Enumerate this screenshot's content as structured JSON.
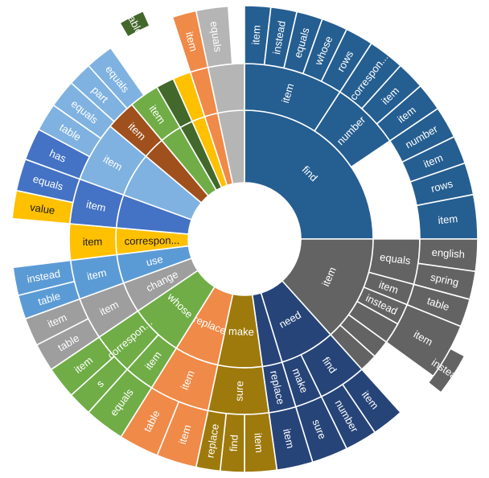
{
  "chart_data": {
    "type": "sunburst",
    "start_angle_deg": 0,
    "direction": "clockwise",
    "colors": {
      "blue": "#255E91",
      "gray": "#636363",
      "navy": "#264478",
      "olive": "#9E7A0C",
      "orange": "#F08A48",
      "green": "#70AD47",
      "lightgray": "#9E9E9E",
      "midblue": "#5B9BD5",
      "gold": "#FFC000",
      "royal": "#4472C4",
      "lightblue": "#7FB2E0",
      "rust": "#A0501C",
      "darkgreen": "#43682B",
      "silver": "#B5B5B5"
    },
    "segments": [
      {
        "ring": 1,
        "start": 0,
        "end": 90,
        "label": "find",
        "color": "blue"
      },
      {
        "ring": 2,
        "start": 0,
        "end": 33,
        "label": "item",
        "color": "blue"
      },
      {
        "ring": 2,
        "start": 33,
        "end": 56,
        "label": "number",
        "color": "blue"
      },
      {
        "ring": 3,
        "start": 0,
        "end": 6.5,
        "label": "item",
        "color": "blue"
      },
      {
        "ring": 3,
        "start": 6.5,
        "end": 13,
        "label": "instead",
        "color": "blue"
      },
      {
        "ring": 3,
        "start": 13,
        "end": 19.5,
        "label": "equals",
        "color": "blue"
      },
      {
        "ring": 3,
        "start": 19.5,
        "end": 26,
        "label": "whose",
        "color": "blue"
      },
      {
        "ring": 3,
        "start": 26,
        "end": 33,
        "label": "rows",
        "color": "blue"
      },
      {
        "ring": 3,
        "start": 33,
        "end": 42,
        "label": "correspon...",
        "color": "blue"
      },
      {
        "ring": 3,
        "start": 42,
        "end": 49,
        "label": "item",
        "color": "blue"
      },
      {
        "ring": 3,
        "start": 49,
        "end": 56,
        "label": "item",
        "color": "blue"
      },
      {
        "ring": 3,
        "start": 56,
        "end": 64,
        "label": "number",
        "color": "blue"
      },
      {
        "ring": 3,
        "start": 64,
        "end": 71,
        "label": "item",
        "color": "blue"
      },
      {
        "ring": 3,
        "start": 71,
        "end": 79,
        "label": "rows",
        "color": "blue"
      },
      {
        "ring": 3,
        "start": 79,
        "end": 90,
        "label": "item",
        "color": "blue"
      },
      {
        "ring": 1,
        "start": 90,
        "end": 138,
        "label": "item",
        "color": "gray"
      },
      {
        "ring": 2,
        "start": 90,
        "end": 105,
        "label": "equals",
        "color": "gray"
      },
      {
        "ring": 2,
        "start": 105,
        "end": 112,
        "label": "item",
        "color": "gray"
      },
      {
        "ring": 2,
        "start": 112,
        "end": 119,
        "label": "instead",
        "color": "gray"
      },
      {
        "ring": 3,
        "start": 90,
        "end": 98,
        "label": "english",
        "color": "gray"
      },
      {
        "ring": 3,
        "start": 98,
        "end": 105,
        "label": "spring",
        "color": "gray"
      },
      {
        "ring": 3,
        "start": 105,
        "end": 112,
        "label": "table",
        "color": "gray"
      },
      {
        "ring": 3,
        "start": 112,
        "end": 126,
        "label": "item",
        "color": "gray"
      },
      {
        "ring": 2,
        "start": 119,
        "end": 126,
        "label": "",
        "color": "gray"
      },
      {
        "ring": 2,
        "start": 126,
        "end": 132,
        "label": "",
        "color": "gray"
      },
      {
        "ring": 2,
        "start": 132,
        "end": 138,
        "label": "",
        "color": "gray"
      },
      {
        "ring": 4,
        "start": 118,
        "end": 128,
        "label": "instead",
        "color": "gray"
      },
      {
        "ring": 1,
        "start": 138,
        "end": 163,
        "label": "need",
        "color": "navy"
      },
      {
        "ring": 2,
        "start": 138,
        "end": 154,
        "label": "find",
        "color": "navy"
      },
      {
        "ring": 2,
        "start": 154,
        "end": 163,
        "label": "make",
        "color": "navy"
      },
      {
        "ring": 3,
        "start": 138,
        "end": 146,
        "label": "item",
        "color": "navy"
      },
      {
        "ring": 3,
        "start": 146,
        "end": 154,
        "label": "number",
        "color": "navy"
      },
      {
        "ring": 3,
        "start": 154,
        "end": 163,
        "label": "sure",
        "color": "navy"
      },
      {
        "ring": 3,
        "start": 163,
        "end": 172,
        "label": "item",
        "color": "navy"
      },
      {
        "ring": 2,
        "start": 163,
        "end": 172,
        "label": "replace",
        "color": "navy"
      },
      {
        "ring": 1,
        "start": 163,
        "end": 172,
        "label": "",
        "color": "navy"
      },
      {
        "ring": 1,
        "start": 172,
        "end": 192,
        "label": "make",
        "color": "olive"
      },
      {
        "ring": 2,
        "start": 172,
        "end": 192,
        "label": "sure",
        "color": "olive"
      },
      {
        "ring": 3,
        "start": 172,
        "end": 180,
        "label": "item",
        "color": "olive"
      },
      {
        "ring": 3,
        "start": 180,
        "end": 186,
        "label": "find",
        "color": "olive"
      },
      {
        "ring": 3,
        "start": 186,
        "end": 192,
        "label": "replace",
        "color": "olive"
      },
      {
        "ring": 1,
        "start": 192,
        "end": 212,
        "label": "replace",
        "color": "orange"
      },
      {
        "ring": 2,
        "start": 192,
        "end": 212,
        "label": "item",
        "color": "orange"
      },
      {
        "ring": 3,
        "start": 192,
        "end": 202,
        "label": "item",
        "color": "orange"
      },
      {
        "ring": 3,
        "start": 202,
        "end": 212,
        "label": "table",
        "color": "orange"
      },
      {
        "ring": 1,
        "start": 212,
        "end": 236,
        "label": "whose",
        "color": "green"
      },
      {
        "ring": 2,
        "start": 212,
        "end": 222,
        "label": "item",
        "color": "green"
      },
      {
        "ring": 2,
        "start": 222,
        "end": 236,
        "label": "correspon...",
        "color": "green"
      },
      {
        "ring": 3,
        "start": 212,
        "end": 222,
        "label": "equals",
        "color": "green"
      },
      {
        "ring": 3,
        "start": 222,
        "end": 228,
        "label": "s",
        "color": "green"
      },
      {
        "ring": 3,
        "start": 228,
        "end": 236,
        "label": "item",
        "color": "green"
      },
      {
        "ring": 1,
        "start": 236,
        "end": 250,
        "label": "change",
        "color": "lightgray"
      },
      {
        "ring": 2,
        "start": 236,
        "end": 250,
        "label": "item",
        "color": "lightgray"
      },
      {
        "ring": 3,
        "start": 236,
        "end": 243,
        "label": "table",
        "color": "lightgray"
      },
      {
        "ring": 3,
        "start": 243,
        "end": 250,
        "label": "item",
        "color": "lightgray"
      },
      {
        "ring": 1,
        "start": 250,
        "end": 263,
        "label": "use",
        "color": "midblue"
      },
      {
        "ring": 2,
        "start": 250,
        "end": 263,
        "label": "item",
        "color": "midblue"
      },
      {
        "ring": 3,
        "start": 250,
        "end": 256,
        "label": "table",
        "color": "midblue"
      },
      {
        "ring": 3,
        "start": 256,
        "end": 263,
        "label": "instead",
        "color": "midblue"
      },
      {
        "ring": 1,
        "start": 263,
        "end": 275,
        "label": "correspon...",
        "color": "gold"
      },
      {
        "ring": 2,
        "start": 263,
        "end": 275,
        "label": "item",
        "color": "gold"
      },
      {
        "ring": 3,
        "start": 275,
        "end": 282,
        "label": "value",
        "color": "gold"
      },
      {
        "ring": 1,
        "start": 275,
        "end": 290,
        "label": "",
        "color": "royal"
      },
      {
        "ring": 2,
        "start": 275,
        "end": 290,
        "label": "item",
        "color": "royal"
      },
      {
        "ring": 3,
        "start": 282,
        "end": 290,
        "label": "equals",
        "color": "royal"
      },
      {
        "ring": 3,
        "start": 290,
        "end": 298,
        "label": "has",
        "color": "royal"
      },
      {
        "ring": 1,
        "start": 290,
        "end": 310,
        "label": "",
        "color": "lightblue"
      },
      {
        "ring": 2,
        "start": 290,
        "end": 310,
        "label": "item",
        "color": "lightblue"
      },
      {
        "ring": 3,
        "start": 298,
        "end": 305,
        "label": "table",
        "color": "lightblue"
      },
      {
        "ring": 3,
        "start": 305,
        "end": 312,
        "label": "equals",
        "color": "lightblue"
      },
      {
        "ring": 3,
        "start": 312,
        "end": 318,
        "label": "part",
        "color": "lightblue"
      },
      {
        "ring": 3,
        "start": 318,
        "end": 325,
        "label": "equals",
        "color": "lightblue"
      },
      {
        "ring": 1,
        "start": 310,
        "end": 320,
        "label": "",
        "color": "rust"
      },
      {
        "ring": 2,
        "start": 310,
        "end": 320,
        "label": "item",
        "color": "rust"
      },
      {
        "ring": 1,
        "start": 320,
        "end": 330,
        "label": "",
        "color": "green"
      },
      {
        "ring": 2,
        "start": 320,
        "end": 330,
        "label": "item",
        "color": "green"
      },
      {
        "ring": 1,
        "start": 330,
        "end": 336,
        "label": "",
        "color": "darkgreen"
      },
      {
        "ring": 2,
        "start": 330,
        "end": 336,
        "label": "",
        "color": "darkgreen"
      },
      {
        "ring": 4,
        "start": 330,
        "end": 336,
        "label": "table",
        "color": "darkgreen"
      },
      {
        "ring": 1,
        "start": 336,
        "end": 342,
        "label": "",
        "color": "gold"
      },
      {
        "ring": 2,
        "start": 336,
        "end": 342,
        "label": "",
        "color": "gold"
      },
      {
        "ring": 1,
        "start": 342,
        "end": 348,
        "label": "",
        "color": "orange"
      },
      {
        "ring": 2,
        "start": 342,
        "end": 348,
        "label": "",
        "color": "orange"
      },
      {
        "ring": 3,
        "start": 342,
        "end": 348,
        "label": "item",
        "color": "orange"
      },
      {
        "ring": 1,
        "start": 348,
        "end": 360,
        "label": "",
        "color": "silver"
      },
      {
        "ring": 2,
        "start": 348,
        "end": 360,
        "label": "",
        "color": "silver"
      },
      {
        "ring": 3,
        "start": 348,
        "end": 356,
        "label": "equals",
        "color": "silver"
      }
    ]
  }
}
